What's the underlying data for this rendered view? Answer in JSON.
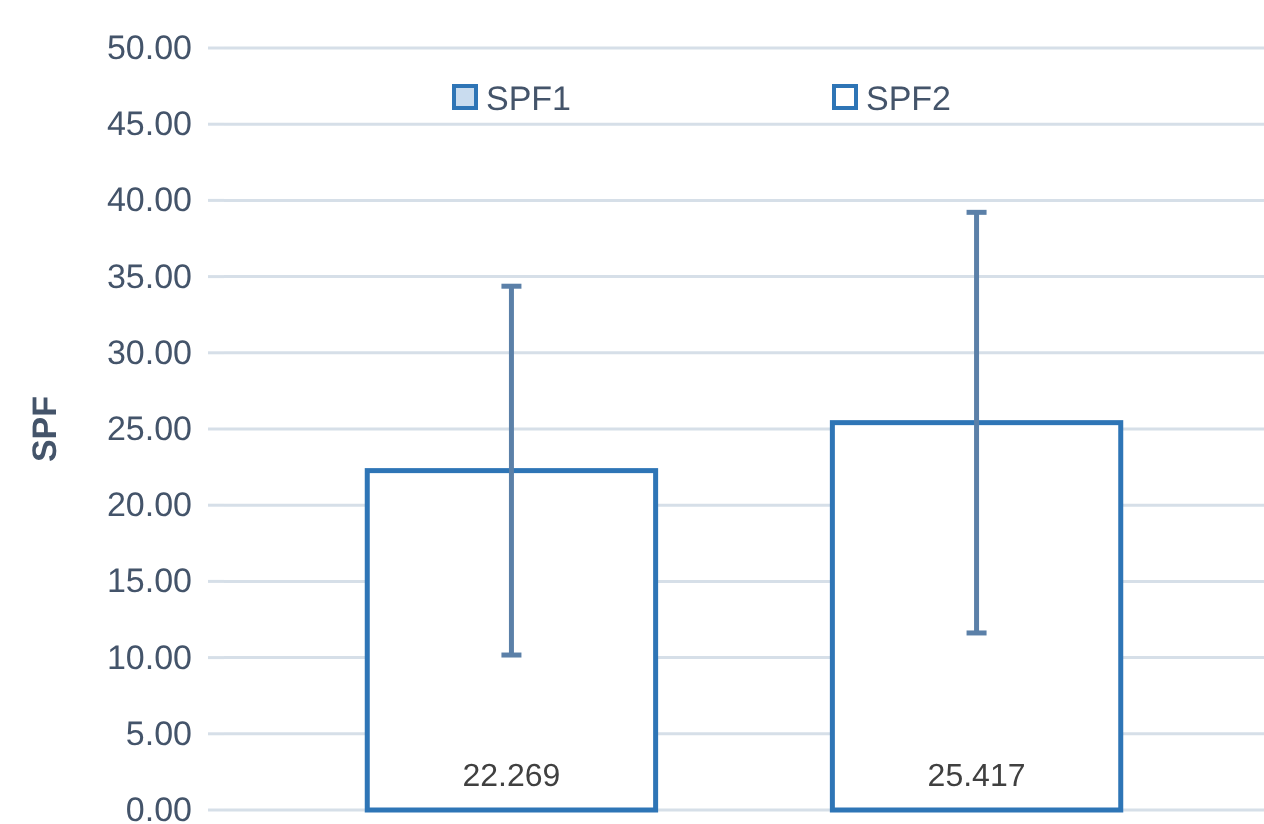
{
  "chart_data": {
    "type": "bar",
    "ylabel": "SPF",
    "categories": [
      null
    ],
    "series": [
      {
        "name": "SPF1",
        "color": "#2e75b6",
        "values": [
          22.269
        ],
        "errors": [
          12.1
        ]
      },
      {
        "name": "SPF2",
        "color": "#2e75b6",
        "values": [
          25.417
        ],
        "errors": [
          13.8
        ]
      }
    ],
    "ylim": [
      0,
      50
    ],
    "yticks": [
      {
        "value": 0,
        "label": "0.00"
      },
      {
        "value": 5,
        "label": "5.00"
      },
      {
        "value": 10,
        "label": "10.00"
      },
      {
        "value": 15,
        "label": "15.00"
      },
      {
        "value": 20,
        "label": "20.00"
      },
      {
        "value": 25,
        "label": "25.00"
      },
      {
        "value": 30,
        "label": "30.00"
      },
      {
        "value": 35,
        "label": "35.00"
      },
      {
        "value": 40,
        "label": "40.00"
      },
      {
        "value": 45,
        "label": "45.00"
      },
      {
        "value": 50,
        "label": "50.00"
      }
    ],
    "grid": "y",
    "legend": "top",
    "data_labels": true
  }
}
